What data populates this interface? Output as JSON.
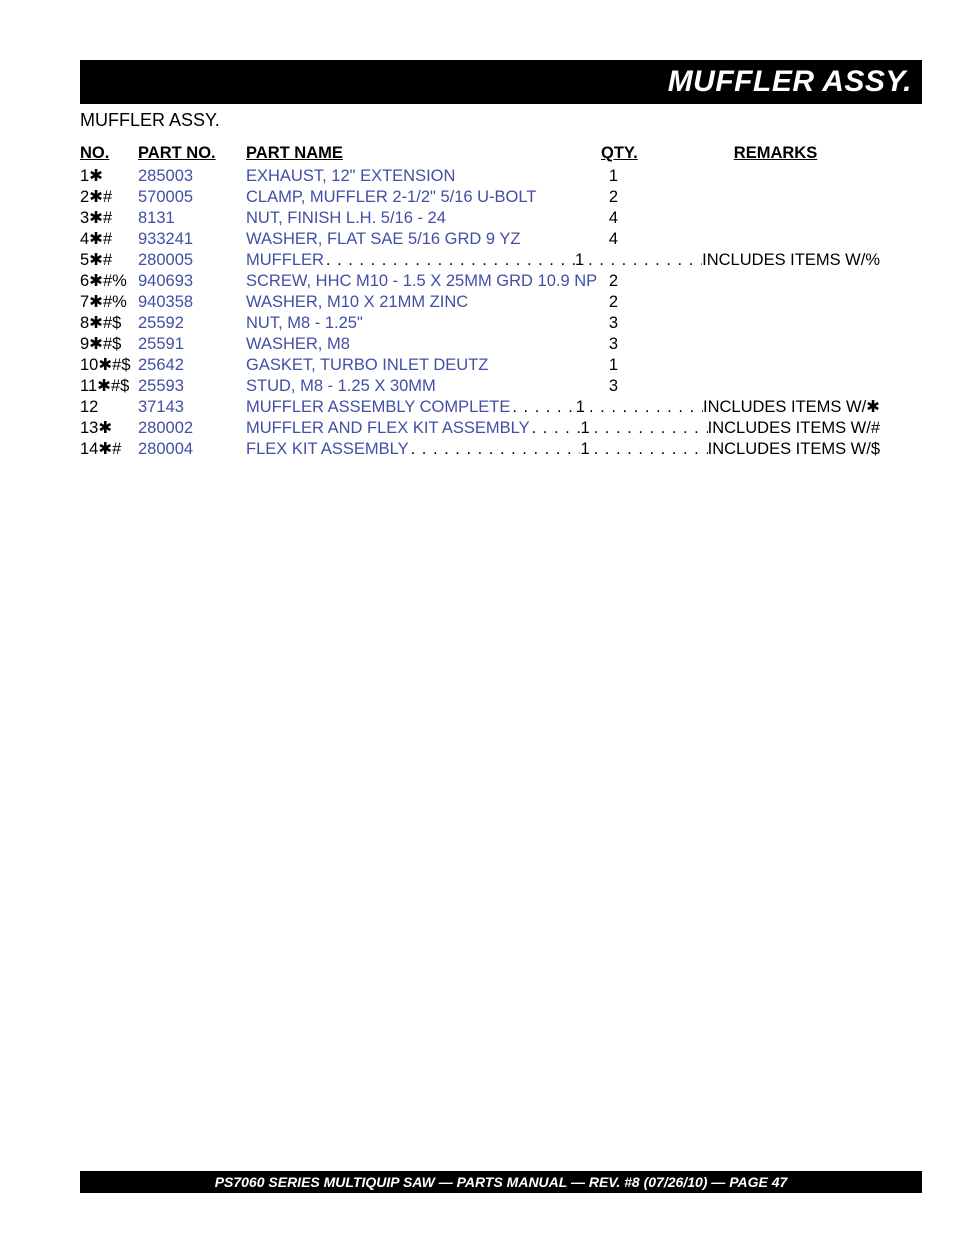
{
  "colors": {
    "background": "#ffffff",
    "bar_bg": "#000000",
    "bar_text": "#ffffff",
    "body_text": "#000000",
    "link_text": "#414fa4"
  },
  "fonts": {
    "title_family": "Arial Black",
    "title_size_pt": 22,
    "body_family": "Arial",
    "body_size_pt": 12,
    "footer_size_pt": 11
  },
  "header": {
    "title": "MUFFLER ASSY.",
    "subtitle": "MUFFLER ASSY."
  },
  "table": {
    "type": "table",
    "columns": [
      "NO.",
      "PART NO.",
      "PART NAME",
      "QTY.",
      "REMARKS"
    ],
    "rows": [
      {
        "no": "1✱",
        "part": "285003",
        "name": "EXHAUST, 12\" EXTENSION",
        "qty": "1",
        "remarks": "",
        "dotted": false
      },
      {
        "no": "2✱#",
        "part": "570005",
        "name": "CLAMP, MUFFLER 2-1/2\" 5/16 U-BOLT",
        "qty": "2",
        "remarks": "",
        "dotted": false
      },
      {
        "no": "3✱#",
        "part": "8131",
        "name": "NUT, FINISH L.H. 5/16 - 24",
        "qty": "4",
        "remarks": "",
        "dotted": false
      },
      {
        "no": "4✱#",
        "part": "933241",
        "name": "WASHER, FLAT SAE 5/16 GRD 9 YZ",
        "qty": "4",
        "remarks": "",
        "dotted": false
      },
      {
        "no": "5✱#",
        "part": "280005",
        "name": "MUFFLER",
        "qty": "1",
        "remarks": "INCLUDES ITEMS W/%",
        "dotted": true
      },
      {
        "no": "6✱#%",
        "part": "940693",
        "name": "SCREW, HHC M10 - 1.5 X 25MM GRD 10.9 NP",
        "qty": "2",
        "remarks": "",
        "dotted": false
      },
      {
        "no": "7✱#%",
        "part": "940358",
        "name": "WASHER, M10 X 21MM ZINC",
        "qty": "2",
        "remarks": "",
        "dotted": false
      },
      {
        "no": "8✱#$",
        "part": "25592",
        "name": "NUT, M8 - 1.25\"",
        "qty": "3",
        "remarks": "",
        "dotted": false
      },
      {
        "no": "9✱#$",
        "part": "25591",
        "name": "WASHER, M8",
        "qty": "3",
        "remarks": "",
        "dotted": false
      },
      {
        "no": "10✱#$",
        "part": "25642",
        "name": "GASKET, TURBO INLET DEUTZ",
        "qty": "1",
        "remarks": "",
        "dotted": false
      },
      {
        "no": "11✱#$",
        "part": "25593",
        "name": "STUD, M8 - 1.25 X 30MM",
        "qty": "3",
        "remarks": "",
        "dotted": false
      },
      {
        "no": "12",
        "part": "37143",
        "name": "MUFFLER ASSEMBLY COMPLETE",
        "qty": "1",
        "remarks": "INCLUDES ITEMS W/✱",
        "dotted": true
      },
      {
        "no": "13✱",
        "part": "280002",
        "name": "MUFFLER AND FLEX KIT ASSEMBLY",
        "qty": "1",
        "remarks": "INCLUDES ITEMS W/#",
        "dotted": true
      },
      {
        "no": "14✱#",
        "part": "280004",
        "name": "FLEX KIT ASSEMBLY",
        "qty": "1",
        "remarks": "INCLUDES ITEMS W/$",
        "dotted": true
      }
    ]
  },
  "footer": {
    "text": "PS7060 SERIES MULTIQUIP SAW — PARTS MANUAL — REV. #8 (07/26/10) — PAGE 47"
  }
}
